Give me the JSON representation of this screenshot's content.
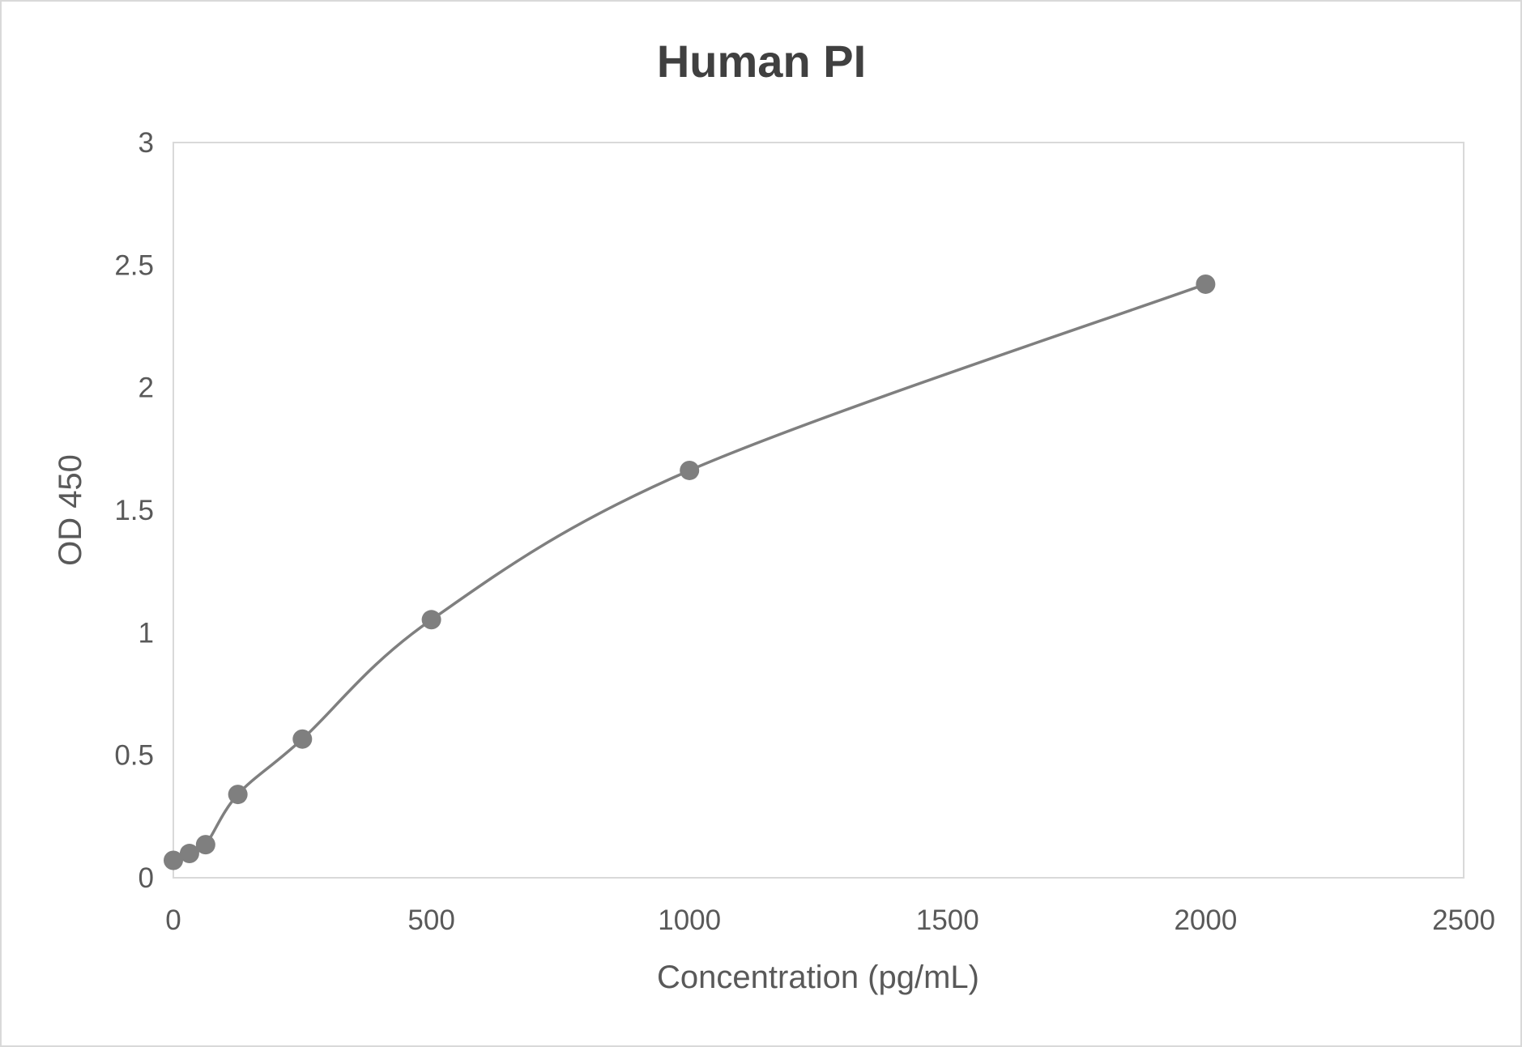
{
  "chart_data": {
    "type": "scatter",
    "title": "Human PI",
    "xlabel": "Concentration (pg/mL)",
    "ylabel": "OD 450",
    "xlim": [
      0,
      2500
    ],
    "ylim": [
      0,
      3
    ],
    "xticks": [
      "0",
      "500",
      "1000",
      "1500",
      "2000",
      "2500"
    ],
    "yticks": [
      "0",
      "0.5",
      "1",
      "1.5",
      "2",
      "2.5",
      "3"
    ],
    "grid": false,
    "smoothed_line": true,
    "series": [
      {
        "x": [
          0,
          31.25,
          62.5,
          125,
          250,
          500,
          1000,
          2000
        ],
        "y": [
          0.071,
          0.099,
          0.135,
          0.34,
          0.566,
          1.053,
          1.662,
          2.422
        ],
        "color": "#7f7f7f"
      }
    ]
  }
}
